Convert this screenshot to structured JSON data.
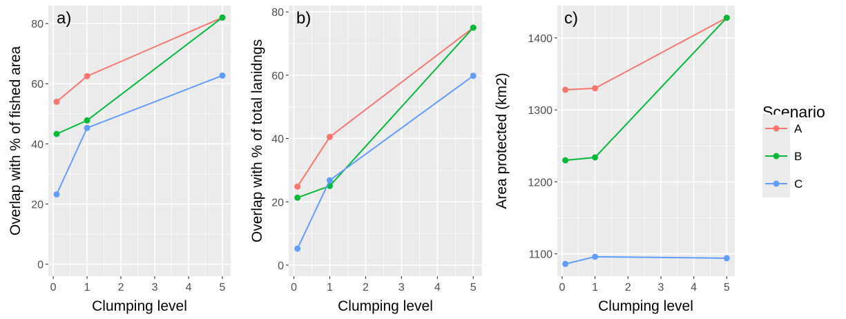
{
  "colors": {
    "A": "#f8766d",
    "B": "#00ba38",
    "C": "#619cff"
  },
  "legend": {
    "title": "Scenario",
    "items": [
      {
        "series": "A",
        "label": "A"
      },
      {
        "series": "B",
        "label": "B"
      },
      {
        "series": "C",
        "label": "C"
      }
    ]
  },
  "chart_data": [
    {
      "type": "line",
      "panel_label": "a)",
      "xlabel": "Clumping level",
      "ylabel": "Overlap with % of fished area",
      "x": [
        0.1,
        1,
        5
      ],
      "xlim": [
        -0.145,
        5.245
      ],
      "ylim": [
        -4,
        86
      ],
      "xticks": [
        0,
        1,
        2,
        3,
        4,
        5
      ],
      "yticks": [
        0,
        20,
        40,
        60,
        80
      ],
      "grid": true,
      "series": [
        {
          "name": "A",
          "values": [
            54,
            62.5,
            82
          ]
        },
        {
          "name": "B",
          "values": [
            43.3,
            47.8,
            82
          ]
        },
        {
          "name": "C",
          "values": [
            23.2,
            45.3,
            62.7
          ]
        }
      ]
    },
    {
      "type": "line",
      "panel_label": "b)",
      "xlabel": "Clumping level",
      "ylabel": "Overlap with % of total lanidngs",
      "x": [
        0.1,
        1,
        5
      ],
      "xlim": [
        -0.145,
        5.245
      ],
      "ylim": [
        -3.5,
        82
      ],
      "xticks": [
        0,
        1,
        2,
        3,
        4,
        5
      ],
      "yticks": [
        0,
        20,
        40,
        60,
        80
      ],
      "grid": true,
      "series": [
        {
          "name": "A",
          "values": [
            24.8,
            40.5,
            75
          ]
        },
        {
          "name": "B",
          "values": [
            21.3,
            25,
            75
          ]
        },
        {
          "name": "C",
          "values": [
            5.2,
            26.8,
            59.8
          ]
        }
      ]
    },
    {
      "type": "line",
      "panel_label": "c)",
      "xlabel": "Clumping level",
      "ylabel": "Area protected (km2)",
      "x": [
        0.1,
        1,
        5
      ],
      "xlim": [
        -0.145,
        5.245
      ],
      "ylim": [
        1069,
        1445
      ],
      "xticks": [
        0,
        1,
        2,
        3,
        4,
        5
      ],
      "yticks": [
        1100,
        1200,
        1300,
        1400
      ],
      "grid": true,
      "series": [
        {
          "name": "A",
          "values": [
            1328,
            1330,
            1428
          ]
        },
        {
          "name": "B",
          "values": [
            1230,
            1234,
            1428
          ]
        },
        {
          "name": "C",
          "values": [
            1086,
            1096,
            1094
          ]
        }
      ]
    }
  ]
}
